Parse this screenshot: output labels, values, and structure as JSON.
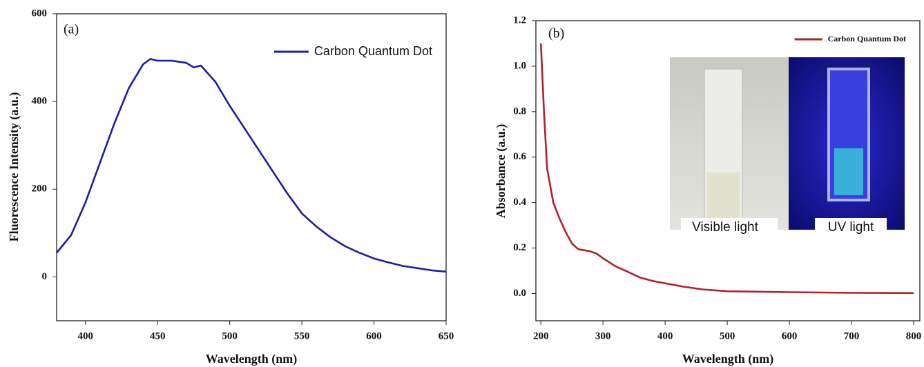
{
  "chart_data": [
    {
      "type": "line",
      "panel_label": "(a)",
      "x_label": "Wavelength (nm)",
      "y_label": "Fluorescence Intensity (a.u.)",
      "x": [
        380,
        390,
        400,
        410,
        420,
        430,
        440,
        445,
        450,
        460,
        470,
        475,
        480,
        490,
        500,
        510,
        520,
        530,
        540,
        550,
        560,
        570,
        580,
        590,
        600,
        610,
        620,
        630,
        640,
        650
      ],
      "series": [
        {
          "name": "Carbon Quantum Dot",
          "color": "#1c1ca8",
          "values": [
            55,
            95,
            170,
            260,
            350,
            430,
            485,
            497,
            493,
            493,
            488,
            478,
            482,
            445,
            390,
            340,
            290,
            240,
            190,
            145,
            115,
            90,
            70,
            55,
            42,
            33,
            25,
            20,
            15,
            12
          ]
        }
      ],
      "xlim": [
        380,
        650
      ],
      "xticks": [
        400,
        450,
        500,
        550,
        600,
        650
      ],
      "ylim": [
        -100,
        600
      ],
      "yticks": [
        0,
        200,
        400,
        600
      ],
      "legend_position": "upper right"
    },
    {
      "type": "line",
      "panel_label": "(b)",
      "x_label": "Wavelength (nm)",
      "y_label": "Absorbance (a.u.)",
      "x": [
        200,
        205,
        210,
        220,
        230,
        240,
        250,
        260,
        270,
        280,
        290,
        300,
        320,
        340,
        360,
        380,
        400,
        430,
        460,
        500,
        600,
        700,
        800
      ],
      "series": [
        {
          "name": "Carbon Quantum Dot",
          "color": "#b3202a",
          "values": [
            1.1,
            0.8,
            0.55,
            0.4,
            0.33,
            0.27,
            0.22,
            0.195,
            0.19,
            0.185,
            0.175,
            0.155,
            0.12,
            0.095,
            0.07,
            0.055,
            0.045,
            0.03,
            0.018,
            0.01,
            0.006,
            0.003,
            0.002
          ]
        }
      ],
      "xlim": [
        192,
        810
      ],
      "xticks": [
        200,
        300,
        400,
        500,
        600,
        700,
        800
      ],
      "ylim": [
        -0.12,
        1.2
      ],
      "yticks": [
        {
          "value": 0,
          "label": "0.0"
        },
        0.2,
        0.4,
        0.6,
        0.8,
        {
          "value": 1,
          "label": "1.0"
        },
        1.2
      ],
      "legend_position": "upper right",
      "inset_labels": [
        "Visible light",
        "UV light"
      ]
    }
  ]
}
